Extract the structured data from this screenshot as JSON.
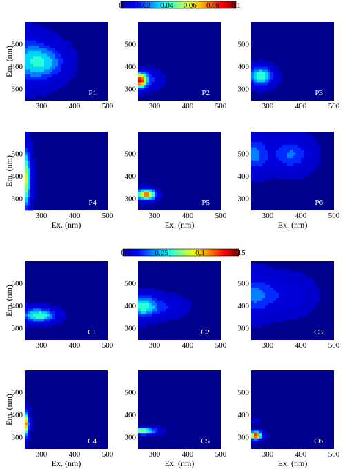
{
  "chart_data": {
    "type": "heatmap",
    "x_label": "Ex. (nm)",
    "y_label": "Em. (nm)",
    "x_ticks": [
      "300",
      "400",
      "500"
    ],
    "y_ticks": [
      "300",
      "400",
      "500"
    ],
    "xlim": [
      250,
      500
    ],
    "ylim": [
      250,
      600
    ],
    "colormap": "jet",
    "background_color": "#00008f",
    "groups": [
      {
        "colorbar": {
          "ticks": [
            "0",
            "0.02",
            "0.04",
            "0.06",
            "0.08",
            "0.1"
          ],
          "min": 0,
          "max": 0.1
        },
        "panels": [
          {
            "label": "P1",
            "peaks": [
              {
                "ex": 260,
                "em": 430,
                "sx": 45,
                "sy": 70,
                "amp": 0.032
              },
              {
                "ex": 320,
                "em": 420,
                "sx": 40,
                "sy": 50,
                "amp": 0.026
              }
            ]
          },
          {
            "label": "P2",
            "peaks": [
              {
                "ex": 255,
                "em": 340,
                "sx": 14,
                "sy": 22,
                "amp": 0.085
              },
              {
                "ex": 280,
                "em": 345,
                "sx": 25,
                "sy": 25,
                "amp": 0.02
              }
            ]
          },
          {
            "label": "P3",
            "peaks": [
              {
                "ex": 280,
                "em": 360,
                "sx": 24,
                "sy": 28,
                "amp": 0.05
              }
            ]
          },
          {
            "label": "P4",
            "peaks": [
              {
                "ex": 250,
                "em": 390,
                "sx": 12,
                "sy": 90,
                "amp": 0.065
              }
            ]
          },
          {
            "label": "P5",
            "peaks": [
              {
                "ex": 275,
                "em": 320,
                "sx": 18,
                "sy": 16,
                "amp": 0.09
              }
            ]
          },
          {
            "label": "P6",
            "peaks": [
              {
                "ex": 260,
                "em": 500,
                "sx": 30,
                "sy": 55,
                "amp": 0.028
              },
              {
                "ex": 370,
                "em": 500,
                "sx": 40,
                "sy": 50,
                "amp": 0.026
              }
            ]
          }
        ]
      },
      {
        "colorbar": {
          "ticks": [
            "0",
            "0.05",
            "0.1",
            "0.15"
          ],
          "min": 0,
          "max": 0.15
        },
        "panels": [
          {
            "label": "C1",
            "peaks": [
              {
                "ex": 305,
                "em": 360,
                "sx": 30,
                "sy": 20,
                "amp": 0.06
              },
              {
                "ex": 270,
                "em": 360,
                "sx": 25,
                "sy": 25,
                "amp": 0.03
              }
            ]
          },
          {
            "label": "C2",
            "peaks": [
              {
                "ex": 260,
                "em": 400,
                "sx": 30,
                "sy": 35,
                "amp": 0.06
              },
              {
                "ex": 320,
                "em": 400,
                "sx": 45,
                "sy": 30,
                "amp": 0.025
              }
            ]
          },
          {
            "label": "C3",
            "peaks": [
              {
                "ex": 260,
                "em": 450,
                "sx": 40,
                "sy": 60,
                "amp": 0.04
              },
              {
                "ex": 360,
                "em": 450,
                "sx": 50,
                "sy": 55,
                "amp": 0.02
              }
            ]
          },
          {
            "label": "C4",
            "peaks": [
              {
                "ex": 250,
                "em": 360,
                "sx": 8,
                "sy": 35,
                "amp": 0.13
              }
            ]
          },
          {
            "label": "C5",
            "peaks": [
              {
                "ex": 265,
                "em": 330,
                "sx": 28,
                "sy": 10,
                "amp": 0.09
              }
            ]
          },
          {
            "label": "C6",
            "peaks": [
              {
                "ex": 265,
                "em": 310,
                "sx": 12,
                "sy": 12,
                "amp": 0.14
              },
              {
                "ex": 265,
                "em": 375,
                "sx": 6,
                "sy": 6,
                "amp": 0.02
              }
            ]
          }
        ]
      }
    ]
  }
}
